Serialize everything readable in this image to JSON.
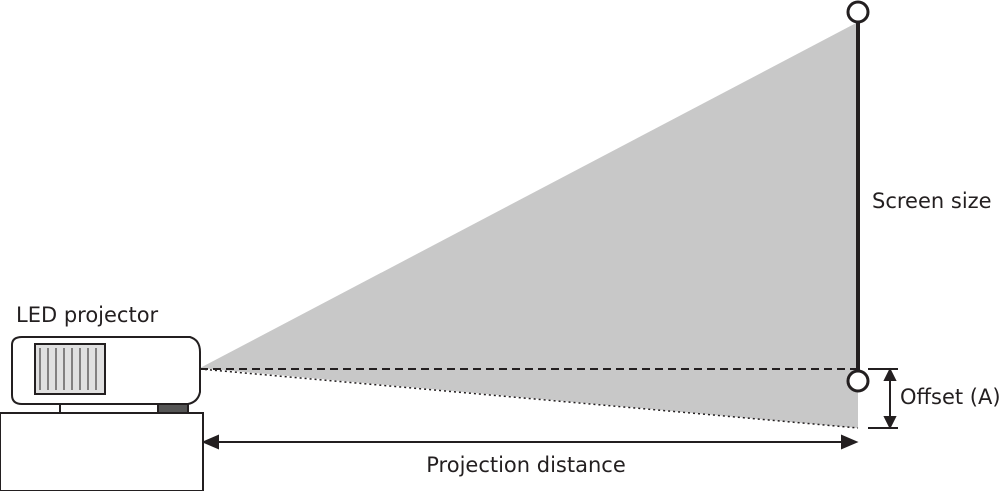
{
  "labels": {
    "projector": "LED projector",
    "screen_size": "Screen size",
    "offset": "Offset (A)",
    "distance": "Projection distance"
  }
}
